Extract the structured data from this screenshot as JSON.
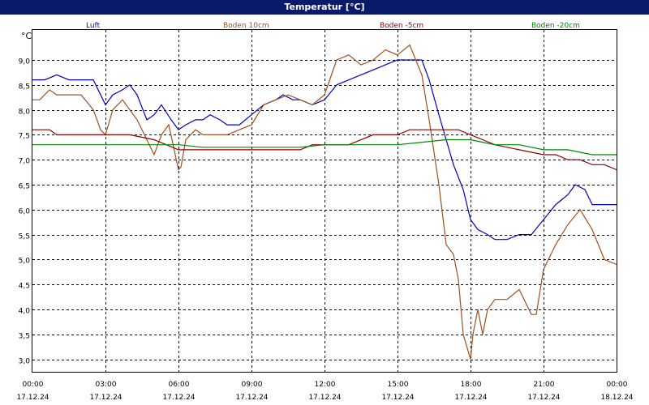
{
  "window": {
    "title": "Temperatur [°C]"
  },
  "chart_data": {
    "type": "line",
    "title": "Temperatur [°C]",
    "ylabel": "°C",
    "xlabel": "",
    "ylim": [
      2.75,
      9.6
    ],
    "xlim": [
      0,
      24
    ],
    "grid": true,
    "legend_placement": "top",
    "y_ticks": [
      "3,0",
      "3,5",
      "4,0",
      "4,5",
      "5,0",
      "5,5",
      "6,0",
      "6,5",
      "7,0",
      "7,5",
      "8,0",
      "8,5",
      "9,0"
    ],
    "x_ticks": [
      {
        "time": "00:00",
        "date": "17.12.24"
      },
      {
        "time": "03:00",
        "date": "17.12.24"
      },
      {
        "time": "06:00",
        "date": "17.12.24"
      },
      {
        "time": "09:00",
        "date": "17.12.24"
      },
      {
        "time": "12:00",
        "date": "17.12.24"
      },
      {
        "time": "15:00",
        "date": "17.12.24"
      },
      {
        "time": "18:00",
        "date": "17.12.24"
      },
      {
        "time": "21:00",
        "date": "17.12.24"
      },
      {
        "time": "00:00",
        "date": "18.12.24"
      }
    ],
    "series": [
      {
        "name": "Luft",
        "color": "#0000cc",
        "x": [
          0,
          0.5,
          1.0,
          1.5,
          2.5,
          3.0,
          3.3,
          3.7,
          4.0,
          4.3,
          4.7,
          5.0,
          5.3,
          5.7,
          6.0,
          6.3,
          6.7,
          7.0,
          7.3,
          7.7,
          8.0,
          8.5,
          9.0,
          9.5,
          10.0,
          10.3,
          10.7,
          11.0,
          11.5,
          12.0,
          12.5,
          13.0,
          13.5,
          14.0,
          14.5,
          15.0,
          15.5,
          16.0,
          16.3,
          16.7,
          17.0,
          17.3,
          17.7,
          18.0,
          18.3,
          18.7,
          19.0,
          19.5,
          20.0,
          20.5,
          21.0,
          21.5,
          22.0,
          22.3,
          22.7,
          23.0,
          23.5,
          24.0
        ],
        "y": [
          8.6,
          8.6,
          8.7,
          8.6,
          8.6,
          8.1,
          8.3,
          8.4,
          8.5,
          8.3,
          7.8,
          7.9,
          8.1,
          7.8,
          7.6,
          7.7,
          7.8,
          7.8,
          7.9,
          7.8,
          7.7,
          7.7,
          7.9,
          8.1,
          8.2,
          8.3,
          8.2,
          8.2,
          8.1,
          8.2,
          8.5,
          8.6,
          8.7,
          8.8,
          8.9,
          9.0,
          9.0,
          9.0,
          8.6,
          7.9,
          7.4,
          6.9,
          6.4,
          5.8,
          5.6,
          5.5,
          5.4,
          5.4,
          5.5,
          5.5,
          5.8,
          6.1,
          6.3,
          6.5,
          6.4,
          6.1,
          6.1,
          6.1
        ]
      },
      {
        "name": "Boden 10cm",
        "color": "#a0501e",
        "x": [
          0,
          0.3,
          0.7,
          1.0,
          1.5,
          2.0,
          2.5,
          2.8,
          3.0,
          3.3,
          3.7,
          4.0,
          4.3,
          4.7,
          5.0,
          5.3,
          5.6,
          6.0,
          6.1,
          6.3,
          6.7,
          7.0,
          7.5,
          8.0,
          8.5,
          9.0,
          9.5,
          10.0,
          10.5,
          11.0,
          11.5,
          12.0,
          12.5,
          13.0,
          13.5,
          14.0,
          14.5,
          15.0,
          15.5,
          16.0,
          16.3,
          16.7,
          17.0,
          17.3,
          17.5,
          17.7,
          18.0,
          18.1,
          18.3,
          18.5,
          18.7,
          19.0,
          19.5,
          20.0,
          20.5,
          20.7,
          21.0,
          21.5,
          22.0,
          22.5,
          23.0,
          23.5,
          24.0
        ],
        "y": [
          8.2,
          8.2,
          8.4,
          8.3,
          8.3,
          8.3,
          8.0,
          7.6,
          7.5,
          8.0,
          8.2,
          8.0,
          7.8,
          7.4,
          7.1,
          7.5,
          7.7,
          6.8,
          6.85,
          7.4,
          7.6,
          7.5,
          7.5,
          7.5,
          7.6,
          7.7,
          8.1,
          8.2,
          8.3,
          8.2,
          8.1,
          8.3,
          9.0,
          9.1,
          8.9,
          9.0,
          9.2,
          9.1,
          9.3,
          8.7,
          7.8,
          6.5,
          5.3,
          5.1,
          4.6,
          3.5,
          3.0,
          3.5,
          4.0,
          3.5,
          4.0,
          4.2,
          4.2,
          4.4,
          3.9,
          3.9,
          4.8,
          5.3,
          5.7,
          6.0,
          5.6,
          5.0,
          4.9
        ]
      },
      {
        "name": "Boden -5cm",
        "color": "#8b0000",
        "x": [
          0,
          0.7,
          1.0,
          2.0,
          3.0,
          4.0,
          5.0,
          5.5,
          6.0,
          6.5,
          7.0,
          8.0,
          9.0,
          10.0,
          11.0,
          11.5,
          12.0,
          13.0,
          14.0,
          15.0,
          15.5,
          16.0,
          17.0,
          17.5,
          18.0,
          18.5,
          19.0,
          20.0,
          21.0,
          21.5,
          22.0,
          22.5,
          23.0,
          23.5,
          24.0
        ],
        "y": [
          7.6,
          7.6,
          7.5,
          7.5,
          7.5,
          7.5,
          7.4,
          7.3,
          7.2,
          7.2,
          7.2,
          7.2,
          7.2,
          7.2,
          7.2,
          7.3,
          7.3,
          7.3,
          7.5,
          7.5,
          7.6,
          7.6,
          7.6,
          7.6,
          7.5,
          7.4,
          7.3,
          7.2,
          7.1,
          7.1,
          7.0,
          7.0,
          6.9,
          6.9,
          6.8
        ]
      },
      {
        "name": "Boden -20cm",
        "color": "#008800",
        "x": [
          0,
          3.0,
          3.5,
          6.0,
          7.0,
          9.0,
          10.0,
          11.0,
          12.0,
          13.0,
          14.0,
          15.0,
          16.0,
          17.0,
          17.5,
          18.0,
          18.5,
          19.0,
          20.0,
          21.0,
          22.0,
          23.0,
          24.0
        ],
        "y": [
          7.3,
          7.3,
          7.3,
          7.3,
          7.25,
          7.25,
          7.25,
          7.25,
          7.3,
          7.3,
          7.3,
          7.3,
          7.35,
          7.4,
          7.4,
          7.4,
          7.35,
          7.3,
          7.3,
          7.2,
          7.2,
          7.1,
          7.1
        ]
      }
    ]
  }
}
